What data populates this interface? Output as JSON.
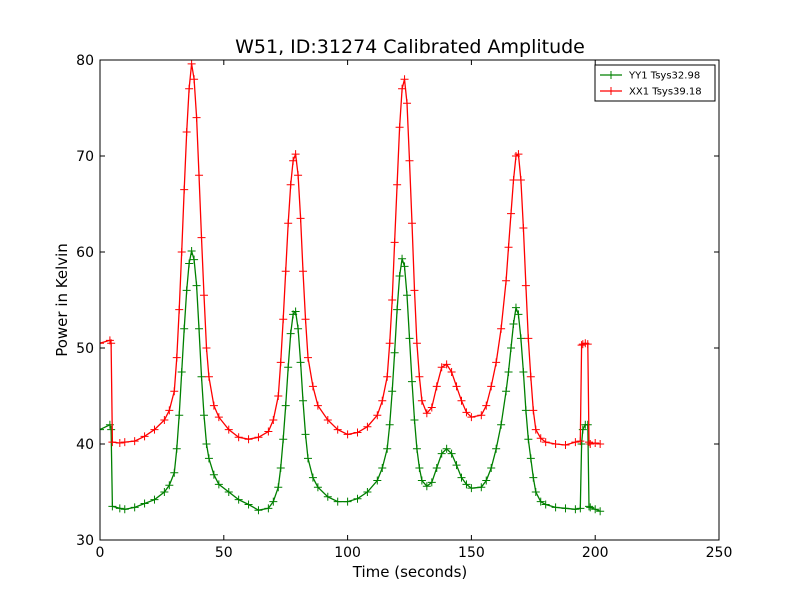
{
  "chart_data": {
    "type": "line",
    "title": "W51, ID:31274 Calibrated Amplitude",
    "xlabel": "Time (seconds)",
    "ylabel": "Power in Kelvin",
    "xlim": [
      0,
      250
    ],
    "ylim": [
      30,
      80
    ],
    "xticks": [
      0,
      50,
      100,
      150,
      200,
      250
    ],
    "yticks": [
      30,
      40,
      50,
      60,
      70,
      80
    ],
    "grid": false,
    "legend_position": "top-right",
    "marker": "plus",
    "series": [
      {
        "name": "YY1 Tsys32.98",
        "color": "#008000",
        "x": [
          0,
          4,
          4.5,
          5,
          8,
          10,
          14,
          18,
          22,
          26,
          28,
          30,
          31,
          32,
          33,
          34,
          35,
          36,
          37,
          38,
          39,
          40,
          41,
          42,
          43,
          44,
          46,
          48,
          52,
          56,
          60,
          64,
          68,
          70,
          72,
          73,
          74,
          75,
          76,
          77,
          78,
          79,
          80,
          81,
          82,
          83,
          84,
          86,
          88,
          92,
          96,
          100,
          104,
          108,
          112,
          114,
          116,
          117,
          118,
          119,
          120,
          121,
          122,
          123,
          124,
          125,
          126,
          127,
          128,
          129,
          130,
          132,
          134,
          136,
          138,
          140,
          142,
          144,
          146,
          148,
          150,
          154,
          156,
          158,
          160,
          162,
          164,
          165,
          166,
          167,
          168,
          169,
          170,
          171,
          172,
          173,
          174,
          175,
          176,
          178,
          180,
          184,
          188,
          192,
          194,
          194.5,
          195,
          196,
          197,
          197.5,
          198,
          200,
          202
        ],
        "y": [
          41.5,
          42,
          41.5,
          33.5,
          33.3,
          33.2,
          33.4,
          33.8,
          34.2,
          35,
          35.7,
          37,
          39.5,
          43,
          47.5,
          52,
          56,
          58.8,
          60.1,
          59.2,
          56.5,
          52,
          47,
          43,
          40,
          38.5,
          36.8,
          35.8,
          35,
          34.2,
          33.7,
          33.1,
          33.3,
          34,
          35.5,
          37.5,
          40.5,
          44,
          48,
          51.5,
          53.5,
          53.8,
          52,
          48.5,
          44.5,
          41,
          38.5,
          36.5,
          35.5,
          34.5,
          34,
          34,
          34.3,
          35,
          36.2,
          37.5,
          39.5,
          42,
          45.5,
          49.5,
          54,
          57.5,
          59.3,
          58.5,
          55.5,
          51,
          46.5,
          42.5,
          39.5,
          37.5,
          36.2,
          35.6,
          36,
          37.5,
          39,
          39.5,
          39,
          37.8,
          36.5,
          35.8,
          35.4,
          35.5,
          36.2,
          37.5,
          39.5,
          42,
          45.5,
          47.5,
          50,
          52.5,
          54.2,
          53.5,
          51,
          47.5,
          43.5,
          40.5,
          38.5,
          36.5,
          35,
          34,
          33.7,
          33.4,
          33.3,
          33.2,
          33.3,
          40,
          41.5,
          42,
          42,
          33.5,
          33.4,
          33.2,
          33
        ]
      },
      {
        "name": "XX1 Tsys39.18",
        "color": "#ff0000",
        "x": [
          0,
          4,
          4.5,
          5,
          8,
          10,
          14,
          18,
          22,
          26,
          28,
          30,
          31,
          32,
          33,
          34,
          35,
          36,
          37,
          38,
          39,
          40,
          41,
          42,
          43,
          44,
          46,
          48,
          52,
          56,
          60,
          64,
          68,
          70,
          72,
          73,
          74,
          75,
          76,
          77,
          78,
          79,
          80,
          81,
          82,
          83,
          84,
          86,
          88,
          92,
          96,
          100,
          104,
          108,
          112,
          114,
          116,
          117,
          118,
          119,
          120,
          121,
          122,
          123,
          124,
          125,
          126,
          127,
          128,
          129,
          130,
          132,
          134,
          136,
          138,
          140,
          142,
          144,
          146,
          148,
          150,
          154,
          156,
          158,
          160,
          162,
          164,
          165,
          166,
          167,
          168,
          169,
          170,
          171,
          172,
          173,
          174,
          175,
          176,
          178,
          180,
          184,
          188,
          192,
          194,
          194.5,
          195,
          196,
          197,
          197.5,
          198,
          200,
          202
        ],
        "y": [
          50.5,
          50.8,
          50.5,
          40.2,
          40.1,
          40.2,
          40.3,
          40.8,
          41.5,
          42.5,
          43.5,
          45.5,
          49,
          54,
          60,
          66.5,
          72.5,
          77,
          79.6,
          78,
          74,
          68,
          61.5,
          55.5,
          50,
          47,
          44,
          42.8,
          41.5,
          40.7,
          40.5,
          40.7,
          41.3,
          42.5,
          45,
          48.5,
          53,
          58,
          63,
          67,
          69.5,
          70.2,
          68,
          63.5,
          58,
          53,
          49,
          46,
          44,
          42.5,
          41.5,
          41,
          41.2,
          41.8,
          43,
          44.5,
          47,
          50.5,
          55,
          61,
          67,
          73,
          77,
          78,
          75.5,
          69.5,
          63,
          56,
          50.5,
          47,
          44.5,
          43.2,
          43.8,
          46,
          48,
          48.3,
          47.5,
          46,
          44.5,
          43.3,
          42.8,
          43,
          44,
          46,
          48.5,
          52,
          57,
          60.5,
          64,
          67.5,
          70,
          70.2,
          67.5,
          62.5,
          56.5,
          51,
          47,
          43.5,
          41.5,
          40.6,
          40.2,
          40,
          39.9,
          40.2,
          40.3,
          50.3,
          50.4,
          50.5,
          50.4,
          40.2,
          40,
          40.1,
          40
        ]
      }
    ]
  }
}
